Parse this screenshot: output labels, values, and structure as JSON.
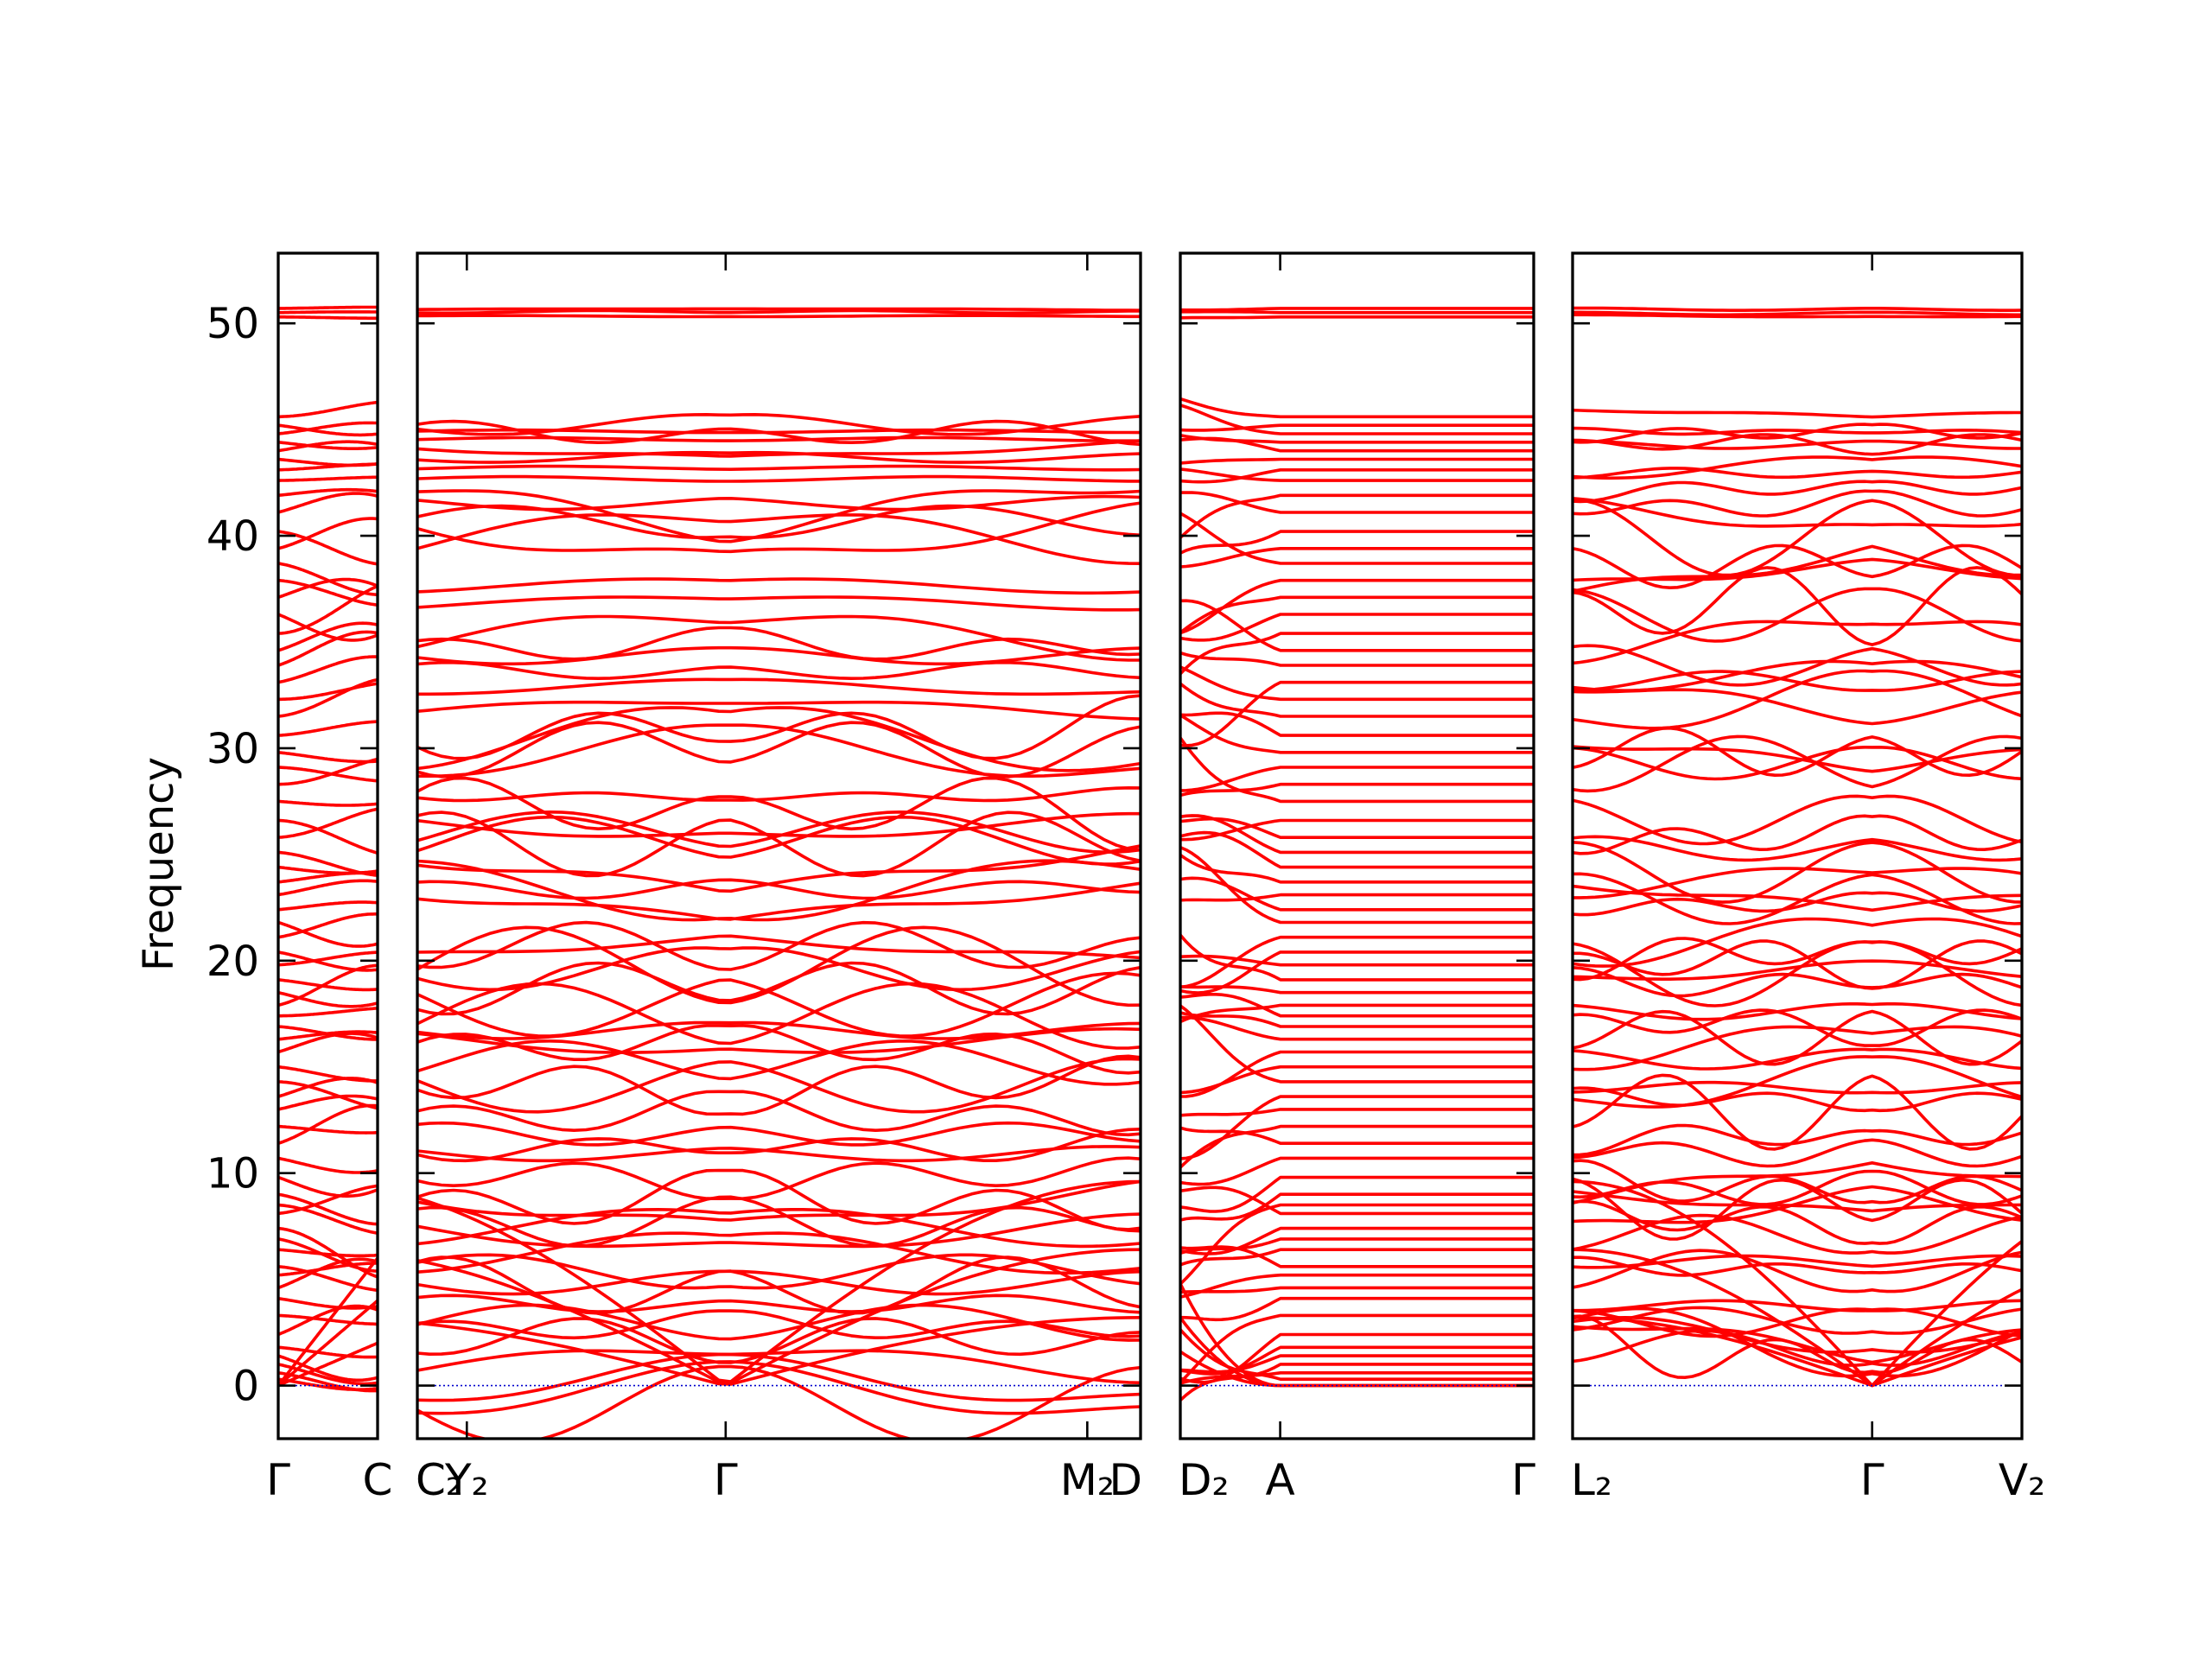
{
  "chart_data": {
    "type": "line",
    "chart_kind": "phonon band structure",
    "ylabel": "Frequency",
    "xlabel": "",
    "ylim": [
      -2.5,
      53.3
    ],
    "yticks": [
      0,
      10,
      20,
      30,
      40,
      50
    ],
    "grid": false,
    "legend": "none",
    "colors": {
      "bands": "#ff0000",
      "zero_line": "#0000cc",
      "frame": "#000000"
    },
    "segments": [
      {
        "path": [
          "Γ",
          "C"
        ],
        "x_range": [
          0,
          0.26
        ],
        "ticks": [
          {
            "x": 0,
            "label": "Γ"
          },
          {
            "x": 0.26,
            "label": "C"
          }
        ],
        "profile": "gentle",
        "tick_branch_seed": 11
      },
      {
        "path": [
          "C₂",
          "Y₂",
          "Γ",
          "M₂",
          "D"
        ],
        "x_range": [
          0,
          1.9
        ],
        "ticks": [
          {
            "x": 0,
            "label": "C₂"
          },
          {
            "x": 0.13,
            "label": "Y₂"
          },
          {
            "x": 0.81,
            "label": "Γ"
          },
          {
            "x": 1.76,
            "label": "M₂"
          },
          {
            "x": 1.9,
            "label": "D"
          }
        ],
        "profile": "dispersive",
        "gamma_x": 0.81,
        "band_seed": 23
      },
      {
        "path": [
          "D₂",
          "A",
          "Γ"
        ],
        "x_range": [
          0,
          0.92
        ],
        "ticks": [
          {
            "x": 0,
            "label": "D₂"
          },
          {
            "x": 0.26,
            "label": "A"
          },
          {
            "x": 0.92,
            "label": "Γ"
          }
        ],
        "profile": "flat-after-A",
        "flat_start_x": 0.26,
        "band_seed": 37
      },
      {
        "path": [
          "L₂",
          "Γ",
          "V₂"
        ],
        "x_range": [
          0,
          1.17
        ],
        "ticks": [
          {
            "x": 0,
            "label": "L₂"
          },
          {
            "x": 0.78,
            "label": "Γ"
          },
          {
            "x": 1.17,
            "label": "V₂"
          }
        ],
        "profile": "dispersive",
        "gamma_x": 0.78,
        "band_seed": 41
      }
    ],
    "band_frequencies_at_gamma": [
      0,
      0,
      0,
      0.3,
      0.6,
      1.0,
      1.4,
      1.8,
      2.4,
      3.3,
      4.1,
      4.6,
      5.2,
      5.6,
      6.4,
      6.9,
      7.4,
      8.1,
      8.5,
      9.0,
      9.8,
      10.7,
      11.4,
      12.2,
      13.0,
      13.6,
      14.3,
      15.0,
      15.7,
      16.3,
      16.9,
      17.4,
      17.9,
      18.5,
      19.1,
      19.8,
      20.4,
      21.1,
      21.8,
      22.4,
      23.1,
      23.7,
      24.4,
      25.1,
      25.8,
      26.6,
      27.5,
      28.3,
      29.1,
      29.8,
      30.6,
      31.5,
      32.3,
      33.1,
      33.9,
      34.6,
      35.4,
      36.3,
      37.1,
      37.9,
      38.7,
      39.4,
      40.2,
      41.1,
      41.9,
      42.6,
      43.1,
      43.6,
      44.0,
      44.4,
      44.8,
      45.2,
      45.6,
      50.3,
      50.5,
      50.7
    ]
  }
}
